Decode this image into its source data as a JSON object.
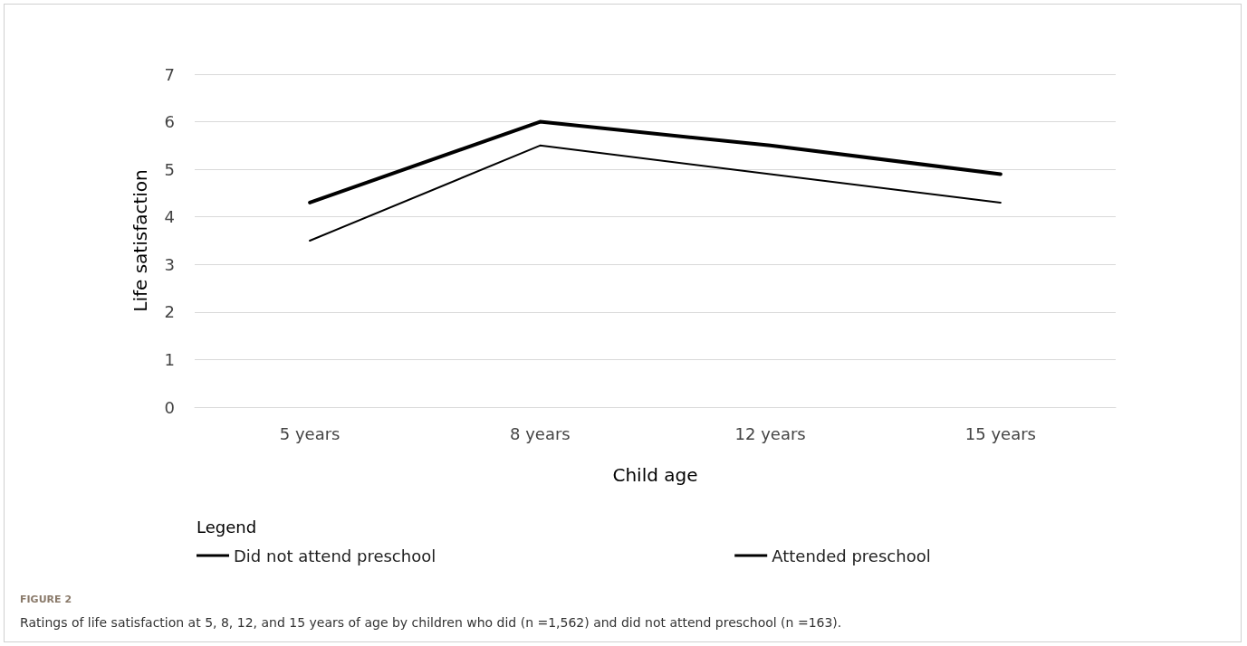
{
  "chart_data": {
    "type": "line",
    "xlabel": "Child age",
    "ylabel": "Life satisfaction",
    "legend_title": "Legend",
    "categories": [
      "5 years",
      "8 years",
      "12 years",
      "15 years"
    ],
    "series": [
      {
        "name": "Did not attend preschool",
        "color": "#000000",
        "values": [
          3.5,
          5.5,
          4.9,
          4.3
        ]
      },
      {
        "name": "Attended preschool",
        "color": "#000000",
        "values": [
          4.3,
          6.0,
          5.5,
          4.9
        ]
      }
    ],
    "ylim": [
      0,
      7
    ],
    "yticks": [
      0,
      1,
      2,
      3,
      4,
      5,
      6,
      7
    ],
    "grid": "y",
    "legend": "bottom left",
    "marker": "none",
    "line_style": "solid",
    "annotations": [
      "FIGURE 2",
      "Ratings of life satisfaction at 5, 8, 12, and 15 years of age by children who did (n =1,562) and did not attend preschool (n =163)."
    ]
  }
}
